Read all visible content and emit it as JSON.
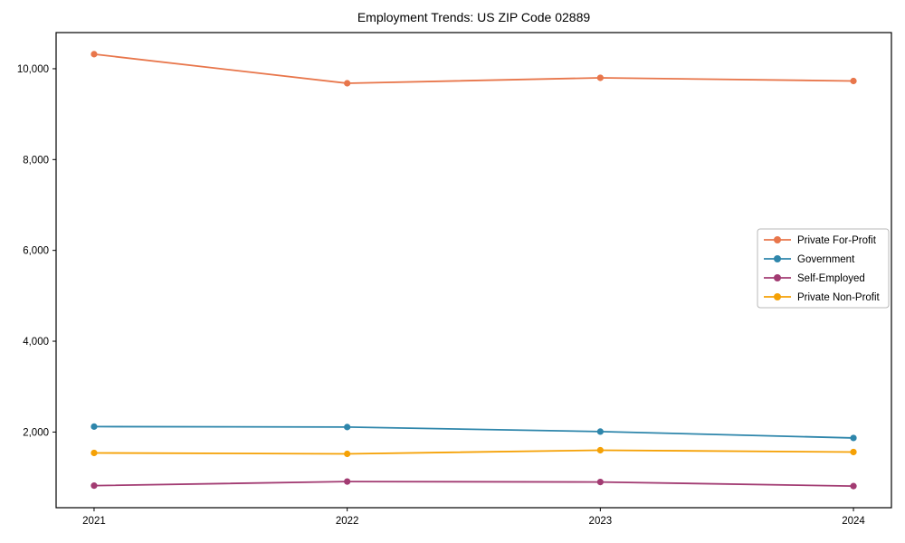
{
  "chart_data": {
    "type": "line",
    "title": "Employment Trends: US ZIP Code 02889",
    "xlabel": "",
    "ylabel": "",
    "x": [
      2021,
      2022,
      2023,
      2024
    ],
    "x_tick_labels": [
      "2021",
      "2022",
      "2023",
      "2024"
    ],
    "series": [
      {
        "name": "Private For-Profit",
        "color": "#e8764b",
        "values": [
          10320,
          9680,
          9800,
          9730
        ]
      },
      {
        "name": "Government",
        "color": "#2e86ab",
        "values": [
          2120,
          2110,
          2010,
          1870
        ]
      },
      {
        "name": "Self-Employed",
        "color": "#a23b72",
        "values": [
          820,
          910,
          900,
          810
        ]
      },
      {
        "name": "Private Non-Profit",
        "color": "#f5a105",
        "values": [
          1540,
          1520,
          1600,
          1560
        ]
      }
    ],
    "xlim": [
      2020.85,
      2024.15
    ],
    "ylim": [
      334,
      10796
    ],
    "yticks": [
      2000,
      4000,
      6000,
      8000,
      10000
    ],
    "y_tick_labels": [
      "2,000",
      "4,000",
      "6,000",
      "8,000",
      "10,000"
    ],
    "grid": false,
    "legend_position": "center right",
    "frame_color": "#000000",
    "legend_border_color": "#b8b8b8"
  }
}
